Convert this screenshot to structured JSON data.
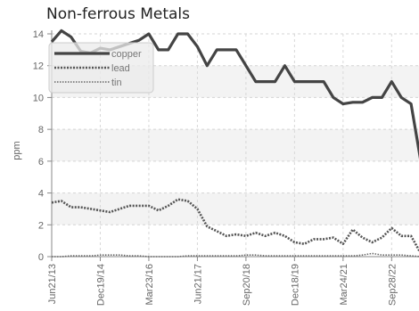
{
  "chart_data": {
    "type": "line",
    "title": "Non-ferrous Metals",
    "ylabel": "ppm",
    "xlabel": "",
    "ylim": [
      0,
      14
    ],
    "yticks": [
      0,
      2,
      4,
      6,
      8,
      10,
      12,
      14
    ],
    "xtick_labels": [
      "Jun21/13",
      "Dec19/14",
      "Mar23/16",
      "Jun21/17",
      "Sep20/18",
      "Dec18/19",
      "Mar24/21",
      "Sep28/22"
    ],
    "grid": true,
    "legend_position": "top-left",
    "series": [
      {
        "name": "copper",
        "color": "#444444",
        "values": [
          13.5,
          14.2,
          13.8,
          12.9,
          12.8,
          13.1,
          13.0,
          13.2,
          13.4,
          13.6,
          14.0,
          13.0,
          13.0,
          14.0,
          14.0,
          13.2,
          12.0,
          13.0,
          13.0,
          13.0,
          12.0,
          11.0,
          11.0,
          11.0,
          12.0,
          11.0,
          11.0,
          11.0,
          11.0,
          10.0,
          9.6,
          9.7,
          9.7,
          10.0,
          10.0,
          11.0,
          10.0,
          9.6,
          6.0
        ]
      },
      {
        "name": "lead",
        "color": "#555555",
        "values": [
          3.4,
          3.5,
          3.1,
          3.1,
          3.0,
          2.9,
          2.8,
          3.0,
          3.2,
          3.2,
          3.2,
          2.9,
          3.2,
          3.6,
          3.5,
          3.0,
          1.9,
          1.6,
          1.3,
          1.4,
          1.3,
          1.5,
          1.3,
          1.5,
          1.3,
          0.9,
          0.8,
          1.1,
          1.1,
          1.2,
          0.8,
          1.7,
          1.2,
          0.9,
          1.2,
          1.8,
          1.3,
          1.3,
          0.2
        ]
      },
      {
        "name": "tin",
        "color": "#666666",
        "values": [
          0.0,
          0.0,
          0.05,
          0.05,
          0.05,
          0.1,
          0.1,
          0.1,
          0.05,
          0.05,
          0.0,
          0.0,
          0.0,
          0.0,
          0.05,
          0.05,
          0.05,
          0.05,
          0.05,
          0.05,
          0.1,
          0.1,
          0.05,
          0.05,
          0.05,
          0.05,
          0.05,
          0.05,
          0.05,
          0.05,
          0.05,
          0.05,
          0.1,
          0.2,
          0.1,
          0.1,
          0.1,
          0.05,
          0.0
        ]
      }
    ]
  }
}
